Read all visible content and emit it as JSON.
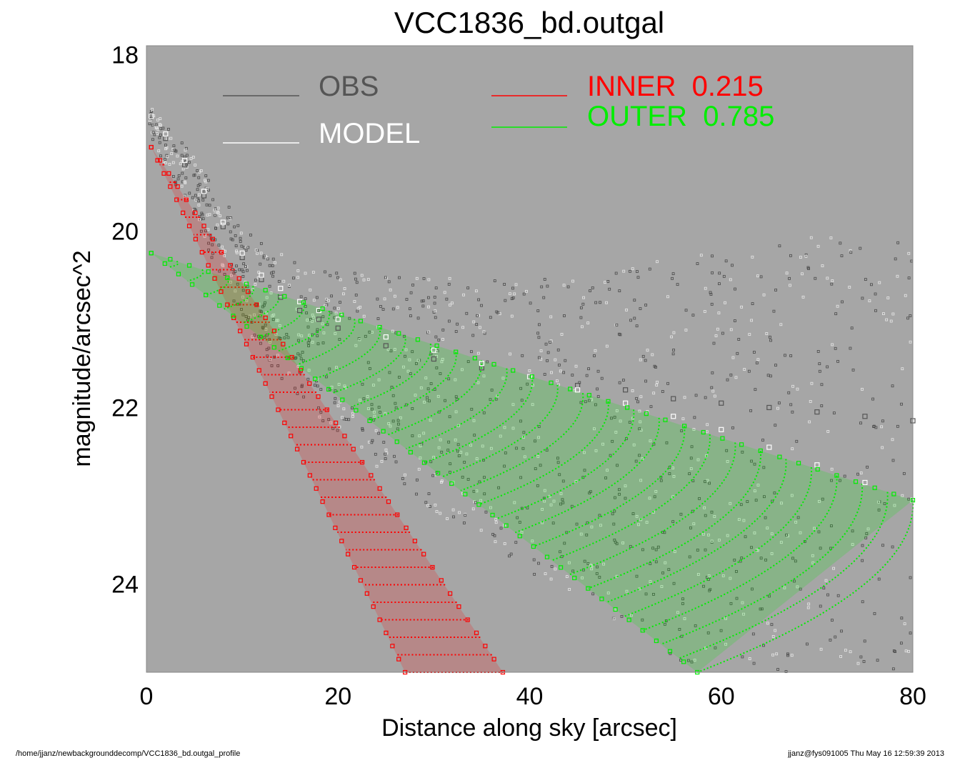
{
  "chart_data": {
    "type": "scatter",
    "title": "VCC1836_bd.outgal",
    "xlabel": "Distance along sky [arcsec]",
    "ylabel": "magnitude/arcsec^2",
    "xlim": [
      0,
      80
    ],
    "ylim": [
      25.0,
      17.9
    ],
    "y_inverted": true,
    "x_ticks": [
      0,
      20,
      40,
      60,
      80
    ],
    "y_ticks": [
      18,
      20,
      22,
      24
    ],
    "background_color": "#a6a6a6",
    "grid": false,
    "legend_placement": "top",
    "series": [
      {
        "name": "OBS",
        "color": "#555555",
        "points": [
          [
            0.5,
            18.7
          ],
          [
            2,
            18.95
          ],
          [
            4,
            19.25
          ],
          [
            6,
            19.6
          ],
          [
            8,
            19.95
          ],
          [
            10,
            20.3
          ],
          [
            12,
            20.55
          ],
          [
            14,
            20.75
          ],
          [
            16,
            20.9
          ],
          [
            18,
            21.0
          ],
          [
            20,
            21.1
          ],
          [
            25,
            21.3
          ],
          [
            30,
            21.45
          ],
          [
            35,
            21.55
          ],
          [
            40,
            21.65
          ],
          [
            45,
            21.75
          ],
          [
            50,
            21.8
          ],
          [
            55,
            21.9
          ],
          [
            60,
            21.95
          ],
          [
            65,
            22.0
          ],
          [
            70,
            22.05
          ],
          [
            75,
            22.1
          ],
          [
            80,
            22.15
          ]
        ]
      },
      {
        "name": "MODEL",
        "color": "#ffffff",
        "points": [
          [
            0.5,
            18.7
          ],
          [
            2,
            18.9
          ],
          [
            4,
            19.2
          ],
          [
            6,
            19.55
          ],
          [
            8,
            19.9
          ],
          [
            10,
            20.25
          ],
          [
            12,
            20.5
          ],
          [
            14,
            20.65
          ],
          [
            16,
            20.8
          ],
          [
            18,
            20.9
          ],
          [
            20,
            21.0
          ],
          [
            25,
            21.2
          ],
          [
            30,
            21.35
          ],
          [
            35,
            21.5
          ],
          [
            40,
            21.65
          ],
          [
            45,
            21.8
          ],
          [
            50,
            21.95
          ],
          [
            55,
            22.1
          ],
          [
            60,
            22.25
          ],
          [
            65,
            22.45
          ],
          [
            70,
            22.65
          ],
          [
            75,
            22.85
          ],
          [
            80,
            23.05
          ]
        ]
      }
    ],
    "components": [
      {
        "name": "INNER",
        "label": "INNER  0.215",
        "fraction": 0.215,
        "color": "#ff0000",
        "upper_edge": [
          [
            0.5,
            19.05
          ],
          [
            37.2,
            25.0
          ]
        ],
        "lower_edge": [
          [
            0.5,
            19.05
          ],
          [
            27.0,
            25.0
          ]
        ]
      },
      {
        "name": "OUTER",
        "label": "OUTER  0.785",
        "fraction": 0.785,
        "color": "#00ee00",
        "upper_edge": [
          [
            0.5,
            20.25
          ],
          [
            80,
            23.05
          ]
        ],
        "lower_edge": [
          [
            0.5,
            20.25
          ],
          [
            57.5,
            25.0
          ]
        ]
      }
    ]
  },
  "legend": {
    "obs": "OBS",
    "model": "MODEL",
    "inner": "INNER  0.215",
    "outer": "OUTER  0.785"
  },
  "footer": {
    "left": "/home/jjanz/newbackgrounddecomp/VCC1836_bd.outgal_profile",
    "right": "jjanz@fys091005  Thu May 16 12:59:39 2013"
  }
}
